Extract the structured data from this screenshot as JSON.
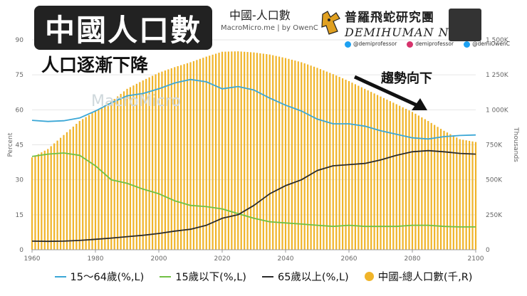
{
  "banner": {
    "title": "中國人口數",
    "subtitle": "人口逐漸下降"
  },
  "header": {
    "chart_title": "中國-人口數",
    "source": "MacroMicro.me | by OwenC",
    "watermark": "MacroMicro"
  },
  "brand": {
    "name": "普羅飛蛇研究團",
    "nft": "DEMIHUMAN NFT",
    "socials": [
      {
        "icon": "twitter-icon",
        "handle": "@demiprofessor"
      },
      {
        "icon": "instagram-icon",
        "handle": "demiprofessor"
      },
      {
        "icon": "twitter-icon",
        "handle": "@demiOwenC"
      }
    ]
  },
  "annotation": "趨勢向下",
  "colors": {
    "working": "#3ba7d6",
    "youth": "#70c045",
    "elderly": "#2b2b2b",
    "population": "#f0b429"
  },
  "chart_data": {
    "type": "line",
    "x": [
      1960,
      1965,
      1970,
      1975,
      1980,
      1985,
      1990,
      1995,
      2000,
      2005,
      2010,
      2015,
      2020,
      2025,
      2030,
      2035,
      2040,
      2045,
      2050,
      2055,
      2060,
      2065,
      2070,
      2075,
      2080,
      2085,
      2090,
      2095,
      2100
    ],
    "xlim": [
      1960,
      2100
    ],
    "xticks": [
      1960,
      1980,
      2000,
      2020,
      2040,
      2060,
      2080,
      2100
    ],
    "ylim_left": [
      0,
      90
    ],
    "yticks_left": [
      0,
      15,
      30,
      45,
      60,
      75,
      90
    ],
    "ylabel_left": "Percent",
    "ylim_right": [
      0,
      1500
    ],
    "yticks_right": [
      "0",
      "250K",
      "500K",
      "750K",
      "1 000K",
      "1 250K",
      "1 500K"
    ],
    "ylabel_right": "Thousands",
    "grid": true,
    "legend": "bottom",
    "series": [
      {
        "name": "15～64歲(%,L)",
        "axis": "left",
        "kind": "line",
        "color": "#3ba7d6",
        "values": [
          55.5,
          55.0,
          55.3,
          56.5,
          59.5,
          63.0,
          66.0,
          67.0,
          69.0,
          71.5,
          73.0,
          72.0,
          69.0,
          70.0,
          68.5,
          65.0,
          62.0,
          59.5,
          56.0,
          54.0,
          54.0,
          53.0,
          51.0,
          49.5,
          48.0,
          47.5,
          48.5,
          49.0,
          49.2
        ]
      },
      {
        "name": "15歲以下(%,L)",
        "axis": "left",
        "kind": "line",
        "color": "#70c045",
        "values": [
          40.0,
          41.0,
          41.5,
          40.5,
          36.0,
          30.0,
          28.5,
          26.0,
          24.0,
          21.0,
          19.0,
          18.5,
          17.5,
          15.5,
          13.5,
          12.0,
          11.5,
          11.0,
          10.5,
          10.0,
          10.5,
          10.0,
          10.0,
          10.0,
          10.5,
          10.5,
          10.0,
          9.8,
          9.8
        ]
      },
      {
        "name": "65歲以上(%,L)",
        "axis": "left",
        "kind": "line",
        "color": "#2b2b2b",
        "values": [
          3.7,
          3.6,
          3.7,
          4.0,
          4.5,
          5.0,
          5.6,
          6.2,
          7.0,
          8.0,
          8.8,
          10.5,
          13.5,
          15.0,
          19.0,
          24.0,
          27.5,
          30.0,
          34.0,
          36.0,
          36.5,
          37.0,
          38.5,
          40.5,
          42.0,
          42.5,
          42.0,
          41.3,
          41.0
        ]
      },
      {
        "name": "中國-總人口數(千,R)",
        "axis": "right",
        "kind": "bar",
        "color": "#f0b429",
        "values": [
          660000,
          720000,
          820000,
          920000,
          990000,
          1060000,
          1150000,
          1210000,
          1265000,
          1305000,
          1340000,
          1380000,
          1415000,
          1418000,
          1410000,
          1395000,
          1370000,
          1340000,
          1300000,
          1255000,
          1205000,
          1150000,
          1095000,
          1040000,
          985000,
          920000,
          850000,
          790000,
          770000
        ]
      }
    ]
  }
}
